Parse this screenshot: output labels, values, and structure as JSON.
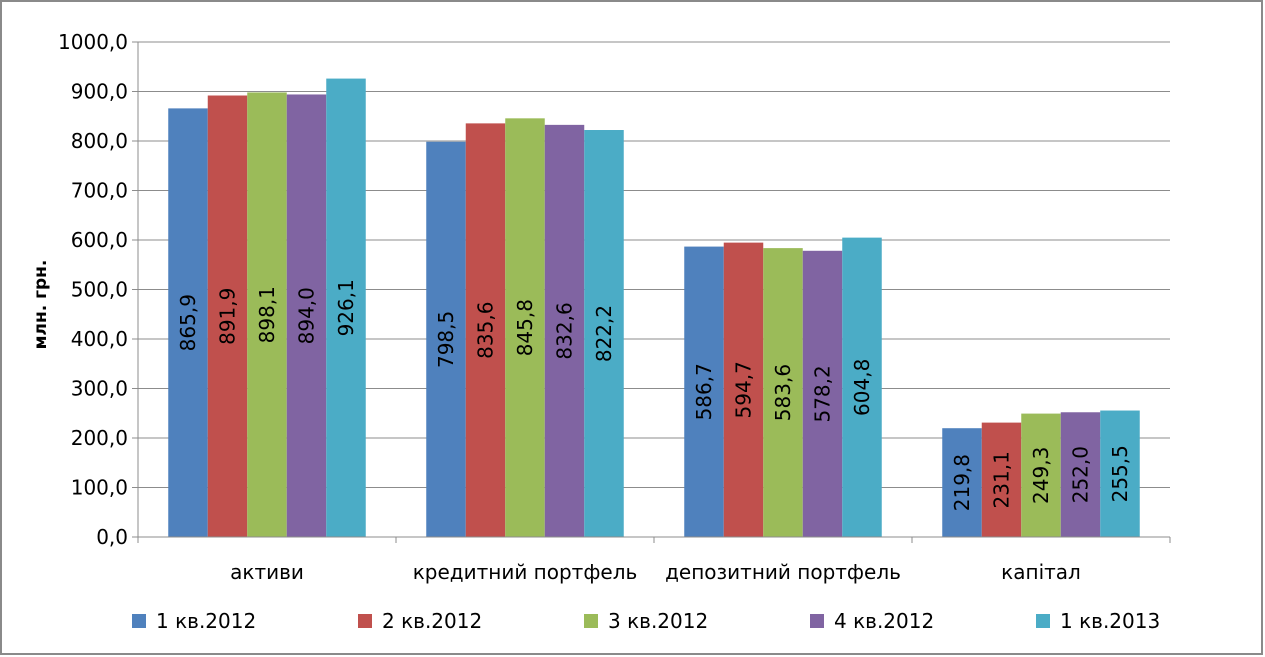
{
  "chart_data": {
    "type": "bar",
    "ylabel": "млн. грн.",
    "ylim": [
      0,
      1000
    ],
    "yticks": [
      "0,0",
      "100,0",
      "200,0",
      "300,0",
      "400,0",
      "500,0",
      "600,0",
      "700,0",
      "800,0",
      "900,0",
      "1000,0"
    ],
    "grid": true,
    "legend_position": "bottom",
    "categories": [
      "активи",
      "кредитний портфель",
      "депозитний портфель",
      "капітал"
    ],
    "series": [
      {
        "name": "1 кв.2012",
        "color": "#4F81BD",
        "values": [
          865.9,
          798.5,
          586.7,
          219.8
        ],
        "labels": [
          "865,9",
          "798,5",
          "586,7",
          "219,8"
        ]
      },
      {
        "name": "2 кв.2012",
        "color": "#C0504D",
        "values": [
          891.9,
          835.6,
          594.7,
          231.1
        ],
        "labels": [
          "891,9",
          "835,6",
          "594,7",
          "231,1"
        ]
      },
      {
        "name": "3 кв.2012",
        "color": "#9BBB59",
        "values": [
          898.1,
          845.8,
          583.6,
          249.3
        ],
        "labels": [
          "898,1",
          "845,8",
          "583,6",
          "249,3"
        ]
      },
      {
        "name": "4 кв.2012",
        "color": "#8064A2",
        "values": [
          894.0,
          832.6,
          578.2,
          252.0
        ],
        "labels": [
          "894,0",
          "832,6",
          "578,2",
          "252,0"
        ]
      },
      {
        "name": "1 кв.2013",
        "color": "#4BACC6",
        "values": [
          926.1,
          822.2,
          604.8,
          255.5
        ],
        "labels": [
          "926,1",
          "822,2",
          "604,8",
          "255,5"
        ]
      }
    ]
  }
}
